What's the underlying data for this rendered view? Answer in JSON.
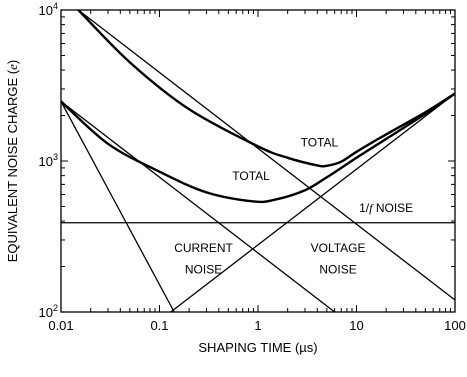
{
  "chart_data": {
    "type": "line",
    "xlabel": "SHAPING TIME (µs)",
    "ylabel_main": "EQUIVALENT NOISE CHARGE (",
    "ylabel_unit": "e",
    "ylabel_close": ")",
    "x_scale": "log",
    "y_scale": "log",
    "xlim": [
      0.01,
      100
    ],
    "ylim": [
      100,
      10000
    ],
    "x_ticks": [
      {
        "value": 0.01,
        "label": "0.01"
      },
      {
        "value": 0.1,
        "label": "0.1"
      },
      {
        "value": 1,
        "label": "1"
      },
      {
        "value": 10,
        "label": "10"
      },
      {
        "value": 100,
        "label": "100"
      }
    ],
    "y_ticks": [
      {
        "value": 100,
        "base": "10",
        "exp": "2"
      },
      {
        "value": 1000,
        "base": "10",
        "exp": "3"
      },
      {
        "value": 10000,
        "base": "10",
        "exp": "4"
      }
    ],
    "grid": false,
    "series": [
      {
        "key": "current_high",
        "points": [
          [
            0.13,
            100
          ],
          [
            100,
            2800
          ]
        ]
      },
      {
        "key": "voltage_high",
        "points": [
          [
            0.015,
            10000
          ],
          [
            100,
            120
          ]
        ]
      },
      {
        "key": "current_low",
        "points": [
          [
            0.01,
            2480
          ],
          [
            6,
            100
          ]
        ]
      },
      {
        "key": "voltage_low",
        "points": [
          [
            0.01,
            2480
          ],
          [
            0.141,
            100
          ]
        ]
      },
      {
        "key": "one_over_f",
        "points": [
          [
            0.01,
            390
          ],
          [
            100,
            390
          ]
        ]
      },
      {
        "key": "total_high",
        "points": [
          [
            0.015,
            10000
          ],
          [
            0.05,
            4500
          ],
          [
            0.2,
            2200
          ],
          [
            1,
            1250
          ],
          [
            2,
            1050
          ],
          [
            4,
            935
          ],
          [
            5,
            930
          ],
          [
            7,
            990
          ],
          [
            10,
            1150
          ],
          [
            20,
            1500
          ],
          [
            50,
            2100
          ],
          [
            100,
            2800
          ]
        ]
      },
      {
        "key": "total_low",
        "points": [
          [
            0.01,
            2480
          ],
          [
            0.03,
            1300
          ],
          [
            0.1,
            850
          ],
          [
            0.3,
            620
          ],
          [
            0.9,
            540
          ],
          [
            1.5,
            555
          ],
          [
            3,
            640
          ],
          [
            5,
            780
          ],
          [
            10,
            1050
          ],
          [
            20,
            1400
          ],
          [
            50,
            2050
          ],
          [
            100,
            2800
          ]
        ]
      }
    ],
    "annotations": [
      {
        "key": "total_high_label",
        "text": "TOTAL",
        "x": 4.2,
        "y": 1250
      },
      {
        "key": "total_low_label",
        "text": "TOTAL",
        "x": 0.85,
        "y": 750
      },
      {
        "key": "one_over_f_label",
        "text": "1/f NOISE",
        "x": 20,
        "y": 460
      },
      {
        "key": "current_label_1",
        "text": "CURRENT",
        "x": 0.28,
        "y": 250
      },
      {
        "key": "current_label_2",
        "text": "NOISE",
        "x": 0.28,
        "y": 180
      },
      {
        "key": "voltage_label_1",
        "text": "VOLTAGE",
        "x": 6.5,
        "y": 250
      },
      {
        "key": "voltage_label_2",
        "text": "NOISE",
        "x": 6.5,
        "y": 180
      }
    ]
  }
}
